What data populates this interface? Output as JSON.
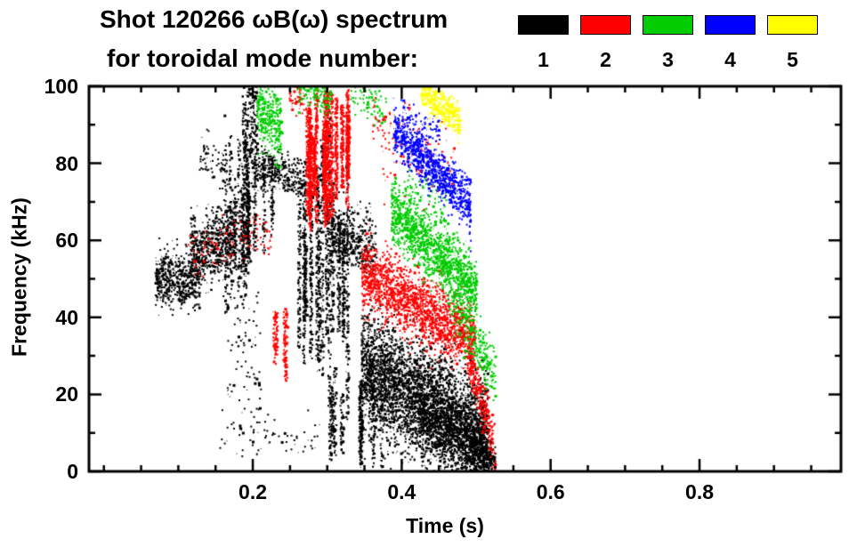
{
  "header": {
    "title_line1": "Shot 120266 ωB(ω) spectrum",
    "title_line2": "for toroidal mode number:"
  },
  "legend": {
    "items": [
      {
        "label": "1",
        "color": "#000000"
      },
      {
        "label": "2",
        "color": "#ff0000"
      },
      {
        "label": "3",
        "color": "#00cc00"
      },
      {
        "label": "4",
        "color": "#0000ff"
      },
      {
        "label": "5",
        "color": "#ffff00"
      }
    ]
  },
  "chart_data": {
    "type": "scatter",
    "title": "Shot 120266 ωB(ω) spectrum for toroidal mode number",
    "xlabel": "Time (s)",
    "ylabel": "Frequency (kHz)",
    "xlim": [
      -0.02,
      0.99
    ],
    "ylim": [
      0,
      100
    ],
    "xticks": [
      0.2,
      0.4,
      0.6,
      0.8
    ],
    "xtick_labels": [
      "0.2",
      "0.4",
      "0.6",
      "0.8"
    ],
    "x_minor_step": 0.05,
    "yticks": [
      0,
      20,
      40,
      60,
      80,
      100
    ],
    "ytick_labels": [
      "0",
      "20",
      "40",
      "60",
      "80",
      "100"
    ],
    "y_minor_step": 10,
    "grid": false,
    "legend_position": "top-right",
    "series": [
      {
        "name": "n=1",
        "mode_number": 1,
        "color": "#000000",
        "bands": [
          {
            "t0": 0.068,
            "t1": 0.128,
            "f0": 50,
            "f1": 50,
            "spread": 3.5,
            "points": 550
          },
          {
            "t0": 0.115,
            "t1": 0.178,
            "f0": 56,
            "f1": 62,
            "spread": 4.5,
            "points": 650
          },
          {
            "t0": 0.148,
            "t1": 0.225,
            "f0": 62,
            "f1": 70,
            "spread": 16,
            "points": 900,
            "streaks": 14
          },
          {
            "t0": 0.185,
            "t1": 0.205,
            "f0": 88,
            "f1": 92,
            "spread": 9,
            "points": 300
          },
          {
            "t0": 0.125,
            "t1": 0.165,
            "f0": 82,
            "f1": 80,
            "spread": 3,
            "points": 70
          },
          {
            "t0": 0.2,
            "t1": 0.27,
            "f0": 79,
            "f1": 76,
            "spread": 2.5,
            "points": 340
          },
          {
            "t0": 0.243,
            "t1": 0.338,
            "f0": 55,
            "f1": 50,
            "spread": 28,
            "points": 1600,
            "streaks": 13
          },
          {
            "t0": 0.3,
            "t1": 0.365,
            "f0": 62,
            "f1": 58,
            "spread": 4,
            "points": 450
          },
          {
            "t0": 0.345,
            "t1": 0.515,
            "f0": 27,
            "f1": 9,
            "spread": 7.5,
            "points": 4000
          },
          {
            "t0": 0.42,
            "t1": 0.52,
            "f0": 14,
            "f1": 4,
            "spread": 4,
            "points": 800
          },
          {
            "t0": 0.3,
            "t1": 0.375,
            "f0": 14,
            "f1": 12,
            "spread": 13,
            "points": 500,
            "streaks": 9
          },
          {
            "t0": 0.155,
            "t1": 0.29,
            "f0": 9,
            "f1": 8,
            "spread": 3,
            "points": 70
          },
          {
            "t0": 0.49,
            "t1": 0.525,
            "f0": 8,
            "f1": 2,
            "spread": 2.5,
            "points": 180
          },
          {
            "t0": 0.165,
            "t1": 0.21,
            "f0": 35,
            "f1": 30,
            "spread": 10,
            "points": 90
          }
        ]
      },
      {
        "name": "n=2",
        "mode_number": 2,
        "color": "#ff0000",
        "bands": [
          {
            "t0": 0.112,
            "t1": 0.225,
            "f0": 57,
            "f1": 63,
            "spread": 3.5,
            "points": 120
          },
          {
            "t0": 0.225,
            "t1": 0.252,
            "f0": 35,
            "f1": 33,
            "spread": 11,
            "points": 200,
            "streaks": 4
          },
          {
            "t0": 0.248,
            "t1": 0.268,
            "f0": 99,
            "f1": 97,
            "spread": 2,
            "points": 60
          },
          {
            "t0": 0.272,
            "t1": 0.328,
            "f0": 80,
            "f1": 84,
            "spread": 13,
            "points": 2200,
            "streaks": 14
          },
          {
            "t0": 0.345,
            "t1": 0.498,
            "f0": 52,
            "f1": 34,
            "spread": 4.5,
            "points": 1800
          },
          {
            "t0": 0.36,
            "t1": 0.47,
            "f0": 88,
            "f1": 80,
            "spread": 5,
            "points": 140
          },
          {
            "t0": 0.488,
            "t1": 0.525,
            "f0": 30,
            "f1": 6,
            "spread": 3.5,
            "points": 260
          }
        ]
      },
      {
        "name": "n=3",
        "mode_number": 3,
        "color": "#00cc00",
        "bands": [
          {
            "t0": 0.205,
            "t1": 0.238,
            "f0": 96,
            "f1": 88,
            "spread": 5,
            "points": 340
          },
          {
            "t0": 0.258,
            "t1": 0.305,
            "f0": 99.5,
            "f1": 97,
            "spread": 2.5,
            "points": 140
          },
          {
            "t0": 0.33,
            "t1": 0.378,
            "f0": 98,
            "f1": 95,
            "spread": 2.5,
            "points": 90
          },
          {
            "t0": 0.385,
            "t1": 0.5,
            "f0": 68,
            "f1": 47,
            "spread": 4,
            "points": 1400
          },
          {
            "t0": 0.4,
            "t1": 0.46,
            "f0": 75,
            "f1": 68,
            "spread": 3,
            "points": 80
          },
          {
            "t0": 0.462,
            "t1": 0.525,
            "f0": 47,
            "f1": 25,
            "spread": 3.5,
            "points": 320
          }
        ]
      },
      {
        "name": "n=4",
        "mode_number": 4,
        "color": "#0000ff",
        "bands": [
          {
            "t0": 0.388,
            "t1": 0.492,
            "f0": 89,
            "f1": 69,
            "spread": 3.2,
            "points": 1000
          },
          {
            "t0": 0.4,
            "t1": 0.45,
            "f0": 94,
            "f1": 88,
            "spread": 2.5,
            "points": 70
          }
        ]
      },
      {
        "name": "n=5",
        "mode_number": 5,
        "color": "#ffff00",
        "bands": [
          {
            "t0": 0.425,
            "t1": 0.478,
            "f0": 99,
            "f1": 91,
            "spread": 2.3,
            "points": 400
          }
        ]
      }
    ]
  }
}
